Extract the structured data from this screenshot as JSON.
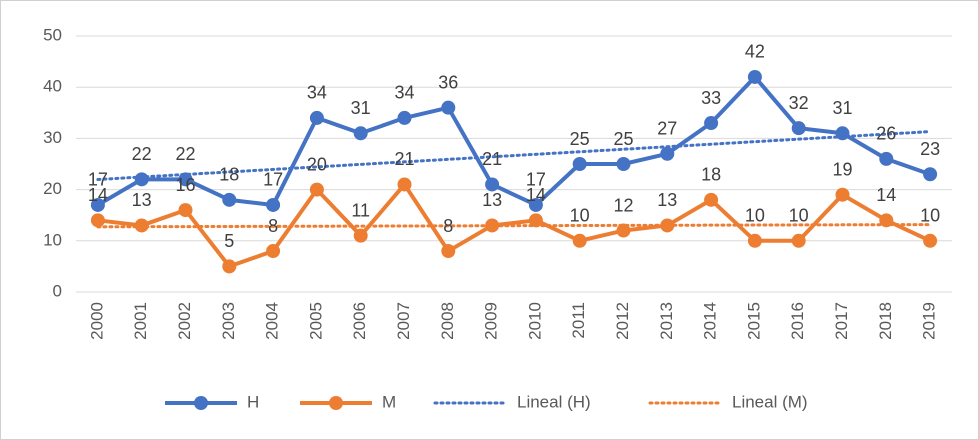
{
  "chart_data": {
    "type": "line",
    "categories": [
      "2000",
      "2001",
      "2002",
      "2003",
      "2004",
      "2005",
      "2006",
      "2007",
      "2008",
      "2009",
      "2010",
      "2011",
      "2012",
      "2013",
      "2014",
      "2015",
      "2016",
      "2017",
      "2018",
      "2019"
    ],
    "series": [
      {
        "name": "H",
        "color": "#4472c4",
        "values": [
          17,
          22,
          22,
          18,
          17,
          34,
          31,
          34,
          36,
          21,
          17,
          25,
          25,
          27,
          33,
          42,
          32,
          31,
          26,
          23
        ],
        "trendline": {
          "name": "Lineal (H)"
        }
      },
      {
        "name": "M",
        "color": "#ed7d31",
        "values": [
          14,
          13,
          16,
          5,
          8,
          20,
          11,
          21,
          8,
          13,
          14,
          10,
          12,
          13,
          18,
          10,
          10,
          19,
          14,
          10
        ],
        "trendline": {
          "name": "Lineal (M)"
        }
      }
    ],
    "ylim": [
      0,
      50
    ],
    "yticks": [
      0,
      10,
      20,
      30,
      40,
      50
    ],
    "grid": true,
    "legend": "bottom"
  }
}
